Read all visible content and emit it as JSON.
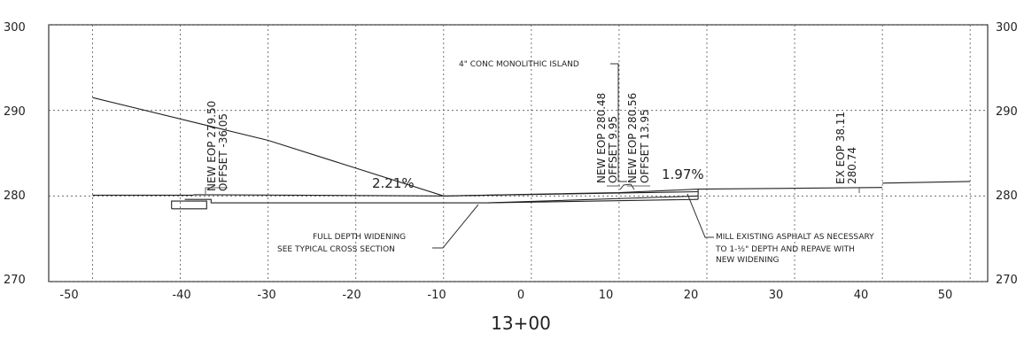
{
  "section": {
    "station": "13+00",
    "x_labels": [
      "-50",
      "-40",
      "-30",
      "-20",
      "-10",
      "0",
      "10",
      "20",
      "30",
      "40",
      "50"
    ],
    "y_labels_left": [
      "300",
      "290",
      "280",
      "270"
    ],
    "y_labels_right": [
      "300",
      "290",
      "280",
      "270"
    ],
    "grades": {
      "left": "2.21%",
      "right": "1.97%"
    },
    "callouts": {
      "island": "4\" CONC MONOLITHIC ISLAND",
      "widening_1": "FULL DEPTH WIDENING",
      "widening_2": "SEE TYPICAL CROSS SECTION",
      "mill_1": "MILL EXISTING ASPHALT AS NECESSARY",
      "mill_2": "TO 1-½\" DEPTH AND REPAVE WITH",
      "mill_3": "NEW WIDENING"
    },
    "vertical_labels": {
      "new_eop_left_elev": "NEW EOP 279.50",
      "new_eop_left_offset": "OFFSET -36.05",
      "new_eop_mid_elev": "NEW EOP 280.48",
      "new_eop_mid_offset": "OFFSET 9.95",
      "new_eop_right_elev": "NEW EOP 280.56",
      "new_eop_right_offset": "OFFSET 13.95",
      "ex_eop_offset": "EX EOP 38.11",
      "ex_eop_elev": "280.74"
    }
  },
  "chart_data": {
    "type": "line",
    "xlim": [
      -55,
      52
    ],
    "ylim": [
      270,
      300
    ],
    "x_ticks": [
      -50,
      -40,
      -30,
      -20,
      -10,
      0,
      10,
      20,
      30,
      40,
      50
    ],
    "y_ticks": [
      270,
      280,
      290,
      300
    ],
    "grid": true,
    "series": [
      {
        "points": [
          [
            -50,
            291.5
          ],
          [
            -30,
            286.5
          ],
          [
            -10,
            280.0
          ],
          [
            19,
            280.5
          ]
        ]
      },
      {
        "points": [
          [
            -50,
            280.1
          ],
          [
            -38.5,
            280.1
          ]
        ]
      },
      {
        "points": [
          [
            -38.5,
            280.15
          ],
          [
            -10,
            280.0
          ],
          [
            10,
            280.4
          ],
          [
            19,
            280.8
          ],
          [
            40,
            281.0
          ]
        ]
      },
      {
        "points": [
          [
            40,
            281.5
          ],
          [
            50,
            281.7
          ]
        ]
      },
      {
        "points": [
          [
            -39.5,
            279.6
          ],
          [
            -36.5,
            279.6
          ],
          [
            -36.5,
            279.2
          ],
          [
            -5,
            279.2
          ],
          [
            19,
            280.0
          ]
        ]
      },
      {
        "points": [
          [
            -41,
            278.5
          ],
          [
            -37,
            278.5
          ],
          [
            -37,
            279.4
          ],
          [
            -41,
            279.4
          ],
          [
            -41,
            278.5
          ]
        ]
      },
      {
        "points": [
          [
            -5,
            279.2
          ],
          [
            19,
            279.6
          ]
        ]
      },
      {
        "points": [
          [
            19,
            279.6
          ],
          [
            19,
            280.8
          ]
        ]
      }
    ]
  }
}
